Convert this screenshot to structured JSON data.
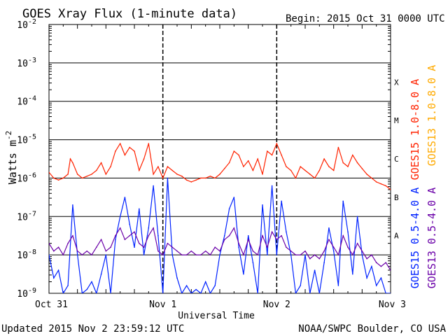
{
  "chart_data": {
    "type": "line",
    "title": "GOES Xray Flux (1-minute data)",
    "begin_text": "Begin:  2015 Oct 31 0000 UTC",
    "xlabel": "Universal Time",
    "ylabel_main": "Watts m",
    "ylabel_exp": "-2",
    "footer_left": "Updated 2015 Nov  2 23:59:12 UTC",
    "footer_right": "NOAA/SWPC Boulder, CO USA",
    "y_scale": "log",
    "ylim_exp": [
      -9,
      -2
    ],
    "xlim_hours": [
      0,
      72
    ],
    "x_ticks": [
      {
        "label": "Oct 31",
        "t": 0
      },
      {
        "label": "Nov 1",
        "t": 24
      },
      {
        "label": "Nov 2",
        "t": 48
      },
      {
        "label": "Nov 3",
        "t": 72
      }
    ],
    "y_ticks": [
      {
        "base": "10",
        "exp": "-9",
        "value": -9
      },
      {
        "base": "10",
        "exp": "-8",
        "value": -8
      },
      {
        "base": "10",
        "exp": "-7",
        "value": -7
      },
      {
        "base": "10",
        "exp": "-6",
        "value": -6
      },
      {
        "base": "10",
        "exp": "-5",
        "value": -5
      },
      {
        "base": "10",
        "exp": "-4",
        "value": -4
      },
      {
        "base": "10",
        "exp": "-3",
        "value": -3
      },
      {
        "base": "10",
        "exp": "-2",
        "value": -2
      }
    ],
    "flare_classes": [
      {
        "label": "A",
        "center_exp": -7.5
      },
      {
        "label": "B",
        "center_exp": -6.5
      },
      {
        "label": "C",
        "center_exp": -5.5
      },
      {
        "label": "M",
        "center_exp": -4.5
      },
      {
        "label": "X",
        "center_exp": -3.5
      }
    ],
    "legend": [
      {
        "text": "GOES15 1.0-8.0 A",
        "color": "#ff2200"
      },
      {
        "text": "GOES13 1.0-8.0 A",
        "color": "#ffaa00"
      },
      {
        "text": "GOES15 0.5-4.0 A",
        "color": "#0022ff"
      },
      {
        "text": "GOES13 0.5-4.0 A",
        "color": "#6a00a8"
      }
    ],
    "grid": true,
    "series": [
      {
        "name": "GOES15 1.0-8.0 A",
        "color": "#ff2200",
        "x": [
          0,
          1,
          2,
          3,
          4,
          4.5,
          5,
          6,
          7,
          8,
          9,
          10,
          11,
          12,
          13,
          14,
          15,
          16,
          17,
          18,
          19,
          20,
          21,
          22,
          23,
          24,
          25,
          26,
          27,
          28,
          29,
          30,
          31,
          32,
          33,
          34,
          35,
          36,
          37,
          38,
          39,
          40,
          41,
          42,
          43,
          44,
          45,
          46,
          47,
          48,
          49,
          50,
          51,
          52,
          53,
          54,
          55,
          56,
          57,
          58,
          59,
          60,
          61,
          62,
          63,
          64,
          65,
          66,
          67,
          68,
          69,
          70,
          71,
          72
        ],
        "y_exp": [
          -5.85,
          -6.0,
          -6.05,
          -6.0,
          -5.9,
          -5.5,
          -5.6,
          -5.9,
          -6.0,
          -5.95,
          -5.9,
          -5.8,
          -5.6,
          -5.9,
          -5.7,
          -5.3,
          -5.1,
          -5.4,
          -5.2,
          -5.3,
          -5.8,
          -5.5,
          -5.1,
          -5.9,
          -5.7,
          -6.0,
          -5.7,
          -5.8,
          -5.9,
          -5.95,
          -6.05,
          -6.1,
          -6.05,
          -6.0,
          -6.0,
          -5.95,
          -6.0,
          -5.9,
          -5.75,
          -5.6,
          -5.3,
          -5.4,
          -5.7,
          -5.55,
          -5.8,
          -5.5,
          -5.9,
          -5.3,
          -5.4,
          -5.1,
          -5.4,
          -5.7,
          -5.8,
          -6.0,
          -5.7,
          -5.8,
          -5.9,
          -6.0,
          -5.8,
          -5.5,
          -5.7,
          -5.8,
          -5.2,
          -5.6,
          -5.7,
          -5.4,
          -5.6,
          -5.75,
          -5.9,
          -6.0,
          -6.1,
          -6.15,
          -6.2,
          -6.3
        ]
      },
      {
        "name": "GOES15 0.5-4.0 A",
        "color": "#0022ff",
        "x": [
          0,
          1,
          2,
          3,
          4,
          5,
          6,
          7,
          8,
          9,
          10,
          11,
          12,
          13,
          14,
          15,
          16,
          17,
          18,
          19,
          20,
          21,
          22,
          23,
          24,
          25,
          26,
          27,
          28,
          29,
          30,
          31,
          32,
          33,
          34,
          35,
          36,
          37,
          38,
          39,
          40,
          41,
          42,
          43,
          44,
          45,
          46,
          47,
          48,
          49,
          50,
          51,
          52,
          53,
          54,
          55,
          56,
          57,
          58,
          59,
          60,
          61,
          62,
          63,
          64,
          65,
          66,
          67,
          68,
          69,
          70,
          71,
          72
        ],
        "y_exp": [
          -8.0,
          -8.6,
          -8.4,
          -9.0,
          -8.8,
          -6.7,
          -8.0,
          -9.0,
          -8.9,
          -8.7,
          -9.0,
          -8.5,
          -8.0,
          -9.0,
          -7.6,
          -7.0,
          -6.5,
          -7.2,
          -7.8,
          -6.8,
          -8.0,
          -7.3,
          -6.2,
          -7.5,
          -9.0,
          -6.0,
          -8.0,
          -8.6,
          -9.0,
          -8.8,
          -9.0,
          -8.9,
          -9.0,
          -8.7,
          -9.0,
          -8.8,
          -8.0,
          -7.5,
          -6.8,
          -6.5,
          -7.8,
          -8.5,
          -7.5,
          -8.2,
          -9.0,
          -6.7,
          -8.0,
          -6.2,
          -8.0,
          -6.6,
          -7.4,
          -8.0,
          -9.0,
          -8.8,
          -8.0,
          -9.0,
          -8.4,
          -9.0,
          -8.2,
          -7.3,
          -7.9,
          -8.8,
          -6.6,
          -7.4,
          -8.5,
          -7.0,
          -8.0,
          -8.6,
          -8.3,
          -8.8,
          -8.6,
          -9.0,
          -9.0
        ]
      },
      {
        "name": "GOES13 0.5-4.0 A",
        "color": "#6a00a8",
        "x": [
          0,
          1,
          2,
          3,
          4,
          5,
          6,
          7,
          8,
          9,
          10,
          11,
          12,
          13,
          14,
          15,
          16,
          17,
          18,
          19,
          20,
          21,
          22,
          23,
          24,
          25,
          26,
          27,
          28,
          29,
          30,
          31,
          32,
          33,
          34,
          35,
          36,
          37,
          38,
          39,
          40,
          41,
          42,
          43,
          44,
          45,
          46,
          47,
          48,
          49,
          50,
          51,
          52,
          53,
          54,
          55,
          56,
          57,
          58,
          59,
          60,
          61,
          62,
          63,
          64,
          65,
          66,
          67,
          68,
          69,
          70,
          71,
          72
        ],
        "y_exp": [
          -7.7,
          -7.9,
          -7.8,
          -8.0,
          -7.7,
          -7.5,
          -7.9,
          -8.0,
          -7.9,
          -8.0,
          -7.8,
          -7.6,
          -7.9,
          -7.8,
          -7.5,
          -7.3,
          -7.6,
          -7.5,
          -7.4,
          -7.7,
          -7.8,
          -7.5,
          -7.3,
          -7.9,
          -8.0,
          -7.7,
          -7.8,
          -7.9,
          -8.0,
          -8.0,
          -7.9,
          -8.0,
          -8.0,
          -7.9,
          -8.0,
          -7.8,
          -7.9,
          -7.6,
          -7.5,
          -7.3,
          -7.7,
          -8.0,
          -7.6,
          -7.9,
          -8.0,
          -7.5,
          -7.8,
          -7.4,
          -7.6,
          -7.5,
          -7.8,
          -7.9,
          -8.0,
          -8.0,
          -7.9,
          -8.1,
          -8.0,
          -8.1,
          -7.9,
          -7.6,
          -7.8,
          -8.0,
          -7.5,
          -7.8,
          -8.0,
          -7.7,
          -7.9,
          -8.1,
          -8.0,
          -8.2,
          -8.3,
          -8.2,
          -8.4
        ]
      }
    ]
  }
}
